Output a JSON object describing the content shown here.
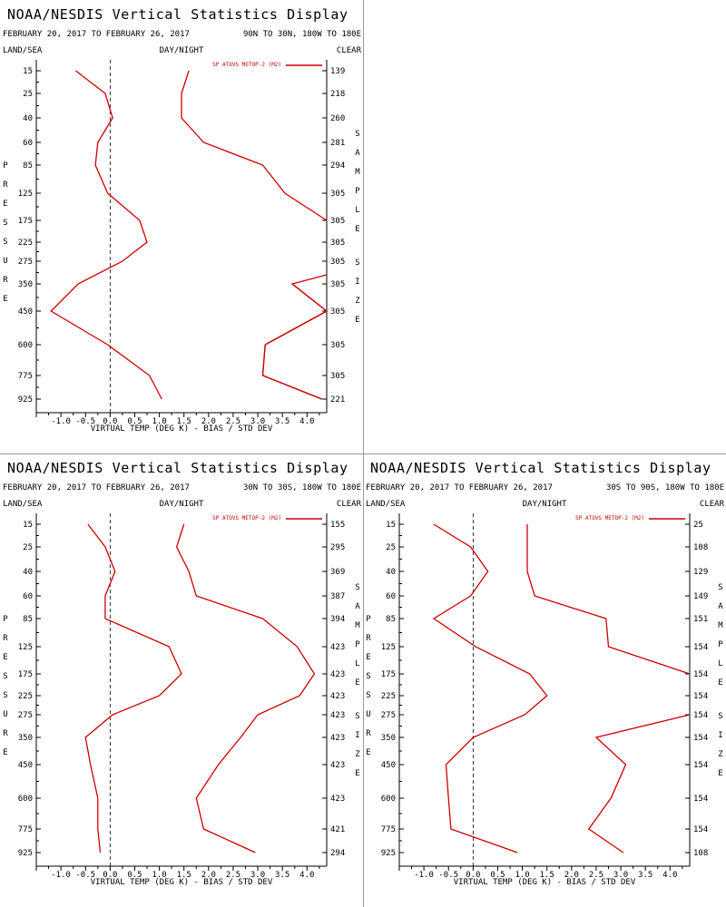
{
  "chart_data": [
    {
      "type": "line",
      "title": "NOAA/NESDIS Vertical Statistics Display",
      "date_range": "FEBRUARY 20, 2017 TO FEBRUARY 26, 2017",
      "region": "90N TO 30N, 180W TO 180E",
      "header_left": "LAND/SEA",
      "header_center": "DAY/NIGHT",
      "header_right": "CLEAR",
      "xlabel": "VIRTUAL TEMP (DEG K) - BIAS / STD DEV",
      "ylabel": "PRESSURE",
      "right_axis_label": "SAMPLE SIZE",
      "legend": "SP ATOVS METOP-2 (M2)",
      "xlim": [
        -1.5,
        4.4
      ],
      "x_ticks": [
        "-1.0",
        "-0.5",
        "0.0",
        "0.5",
        "1.0",
        "1.5",
        "2.0",
        "2.5",
        "3.0",
        "3.5",
        "4.0"
      ],
      "pressure_levels": [
        "15",
        "25",
        "40",
        "60",
        "85",
        "125",
        "175",
        "225",
        "275",
        "350",
        "450",
        "600",
        "775",
        "925"
      ],
      "sample_size": [
        "139",
        "218",
        "260",
        "281",
        "294",
        "305",
        "305",
        "305",
        "305",
        "305",
        "305",
        "305",
        "305",
        "221"
      ],
      "bias": [
        -0.7,
        -0.1,
        0.05,
        -0.25,
        -0.3,
        -0.05,
        0.6,
        0.75,
        0.25,
        -0.65,
        -1.2,
        -0.05,
        0.8,
        1.05
      ],
      "std_dev": [
        1.6,
        1.45,
        1.45,
        1.9,
        3.1,
        3.55,
        4.4,
        null,
        null,
        3.7,
        4.4,
        3.15,
        3.1,
        4.3
      ],
      "std_dev_clipped": [
        [
          13,
          4.3
        ],
        [
          12,
          3.1
        ],
        [
          11,
          3.15
        ],
        [
          10,
          4.4
        ],
        [
          9,
          3.7
        ],
        [
          8.6,
          4.4
        ]
      ]
    },
    {
      "type": "line",
      "title": "NOAA/NESDIS Vertical Statistics Display",
      "date_range": "FEBRUARY 20, 2017 TO FEBRUARY 26, 2017",
      "region": "30N TO 30S, 180W TO 180E",
      "header_left": "LAND/SEA",
      "header_center": "DAY/NIGHT",
      "header_right": "CLEAR",
      "xlabel": "VIRTUAL TEMP (DEG K) - BIAS / STD DEV",
      "ylabel": "PRESSURE",
      "right_axis_label": "SAMPLE SIZE",
      "legend": "SP ATOVS METOP-2 (M2)",
      "xlim": [
        -1.5,
        4.4
      ],
      "x_ticks": [
        "-1.0",
        "-0.5",
        "0.0",
        "0.5",
        "1.0",
        "1.5",
        "2.0",
        "2.5",
        "3.0",
        "3.5",
        "4.0"
      ],
      "pressure_levels": [
        "15",
        "25",
        "40",
        "60",
        "85",
        "125",
        "175",
        "225",
        "275",
        "350",
        "450",
        "600",
        "775",
        "925"
      ],
      "sample_size": [
        "155",
        "295",
        "369",
        "387",
        "394",
        "423",
        "423",
        "423",
        "423",
        "423",
        "423",
        "423",
        "421",
        "294"
      ],
      "bias": [
        -0.45,
        -0.1,
        0.1,
        -0.1,
        -0.1,
        1.2,
        1.45,
        1.0,
        0.05,
        -0.5,
        -0.4,
        -0.25,
        -0.25,
        -0.2
      ],
      "std_dev": [
        1.5,
        1.35,
        1.6,
        1.75,
        3.1,
        3.8,
        4.15,
        3.85,
        3.0,
        2.65,
        2.2,
        1.75,
        1.9,
        2.95
      ]
    },
    {
      "type": "line",
      "title": "NOAA/NESDIS Vertical Statistics Display",
      "date_range": "FEBRUARY 20, 2017 TO FEBRUARY 26, 2017",
      "region": "30S TO 90S, 180W TO 180E",
      "header_left": "LAND/SEA",
      "header_center": "DAY/NIGHT",
      "header_right": "CLEAR",
      "xlabel": "VIRTUAL TEMP (DEG K) - BIAS / STD DEV",
      "ylabel": "PRESSURE",
      "right_axis_label": "SAMPLE SIZE",
      "legend": "SP ATOVS METOP-2 (M2)",
      "xlim": [
        -1.5,
        4.4
      ],
      "x_ticks": [
        "-1.0",
        "-0.5",
        "0.0",
        "0.5",
        "1.0",
        "1.5",
        "2.0",
        "2.5",
        "3.0",
        "3.5",
        "4.0"
      ],
      "pressure_levels": [
        "15",
        "25",
        "40",
        "60",
        "85",
        "125",
        "175",
        "225",
        "275",
        "350",
        "450",
        "600",
        "775",
        "925"
      ],
      "sample_size": [
        "25",
        "108",
        "129",
        "149",
        "151",
        "154",
        "154",
        "154",
        "154",
        "154",
        "154",
        "154",
        "154",
        "108"
      ],
      "bias": [
        -0.8,
        -0.05,
        0.3,
        -0.05,
        -0.8,
        0.05,
        1.15,
        1.5,
        1.05,
        0.0,
        -0.55,
        -0.5,
        -0.45,
        0.9
      ],
      "std_dev": [
        1.1,
        1.1,
        1.1,
        1.25,
        2.7,
        2.75,
        4.4,
        null,
        4.4,
        2.5,
        3.1,
        2.8,
        2.35,
        3.05
      ],
      "std_dev_clipped": [
        [
          7.7,
          4.4
        ]
      ]
    }
  ]
}
